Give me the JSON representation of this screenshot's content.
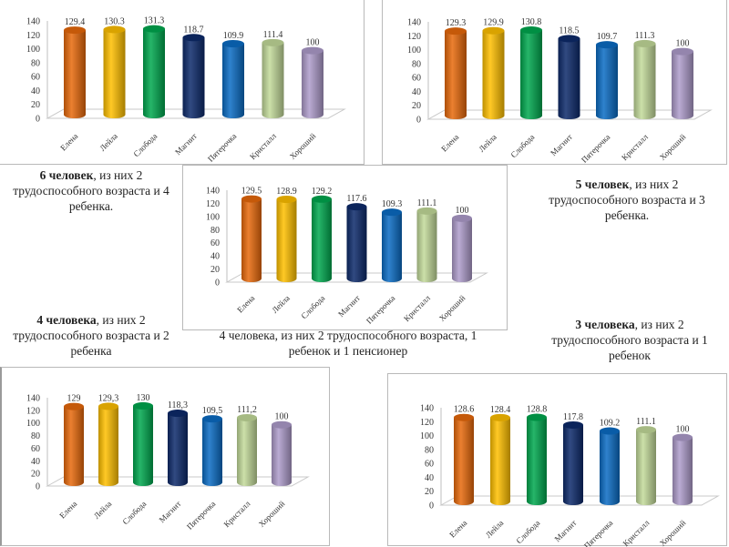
{
  "captions": {
    "cap1": {
      "bold": "6 человек",
      "rest": ", из них 2 трудоспособного возраста и 4 ребенка."
    },
    "cap2": {
      "bold": "5 человек",
      "rest": ", из них 2 трудоспособного возраста и 3 ребенка."
    },
    "cap3": {
      "bold": "4 человека",
      "rest": ", из них 2 трудоспособного возраста и 2 ребенка"
    },
    "cap4": {
      "bold": "",
      "rest": "4 человека, из них 2 трудоспособного возраста, 1 ребенок и 1 пенсионер"
    },
    "cap5": {
      "bold": "3 человека",
      "rest": ", из них 2 трудоспособного возраста и 1 ребенок"
    }
  },
  "chart_data": [
    {
      "id": "chart1",
      "type": "bar",
      "title": "",
      "caption": "6 человек, из них 2 трудоспособного возраста и 4 ребенка.",
      "categories": [
        "Елена",
        "Лейла",
        "Слобода",
        "Магнит",
        "Пятерочка",
        "Кристалл",
        "Хороший"
      ],
      "values": [
        129.4,
        130.3,
        131.3,
        118.7,
        109.9,
        111.4,
        100
      ],
      "labels": [
        "129.4",
        "130.3",
        "131.3",
        "118.7",
        "109.9",
        "111.4",
        "100"
      ],
      "xlabel": "",
      "ylabel": "",
      "ylim": [
        0,
        140
      ],
      "yticks": [
        0,
        20,
        40,
        60,
        80,
        100,
        120,
        140
      ],
      "grid": false,
      "style": "3d-cylinder"
    },
    {
      "id": "chart2",
      "type": "bar",
      "title": "",
      "caption": "5 человек, из них 2 трудоспособного возраста и 3 ребенка.",
      "categories": [
        "Елена",
        "Лейла",
        "Слобода",
        "Магнит",
        "Пятерочка",
        "Кристалл",
        "Хороший"
      ],
      "values": [
        129.3,
        129.9,
        130.8,
        118.5,
        109.7,
        111.3,
        100
      ],
      "labels": [
        "129.3",
        "129.9",
        "130.8",
        "118.5",
        "109.7",
        "111.3",
        "100"
      ],
      "xlabel": "",
      "ylabel": "",
      "ylim": [
        0,
        140
      ],
      "yticks": [
        0,
        20,
        40,
        60,
        80,
        100,
        120,
        140
      ],
      "grid": false,
      "style": "3d-cylinder"
    },
    {
      "id": "chart3",
      "type": "bar",
      "title": "",
      "caption": "4 человека, из них 2 трудоспособного возраста, 1 ребенок и 1 пенсионер",
      "categories": [
        "Елена",
        "Лейла",
        "Слобода",
        "Магнит",
        "Пятерочка",
        "Кристалл",
        "Хороший"
      ],
      "values": [
        129.5,
        128.9,
        129.2,
        117.6,
        109.3,
        111.1,
        100
      ],
      "labels": [
        "129.5",
        "128.9",
        "129.2",
        "117.6",
        "109.3",
        "111.1",
        "100"
      ],
      "xlabel": "",
      "ylabel": "",
      "ylim": [
        0,
        140
      ],
      "yticks": [
        0,
        20,
        40,
        60,
        80,
        100,
        120,
        140
      ],
      "grid": false,
      "style": "3d-cylinder"
    },
    {
      "id": "chart4",
      "type": "bar",
      "title": "",
      "caption": "4 человека, из них 2 трудоспособного возраста и 2 ребенка",
      "categories": [
        "Елена",
        "Лейла",
        "Слобода",
        "Магнит",
        "Пятерочка",
        "Кристалл",
        "Хороший"
      ],
      "values": [
        129,
        129.3,
        130,
        118.3,
        109.5,
        111.2,
        100
      ],
      "labels": [
        "129",
        "129,3",
        "130",
        "118,3",
        "109,5",
        "111,2",
        "100"
      ],
      "xlabel": "",
      "ylabel": "",
      "ylim": [
        0,
        140
      ],
      "yticks": [
        0,
        20,
        40,
        60,
        80,
        100,
        120,
        140
      ],
      "grid": false,
      "style": "3d-cylinder"
    },
    {
      "id": "chart5",
      "type": "bar",
      "title": "",
      "caption": "3 человека, из них 2 трудоспособного возраста и 1 ребенок",
      "categories": [
        "Елена",
        "Лейла",
        "Слобода",
        "Магнит",
        "Пятерочка",
        "Кристалл",
        "Хороший"
      ],
      "values": [
        128.6,
        128.4,
        128.8,
        117.8,
        109.2,
        111.1,
        100
      ],
      "labels": [
        "128.6",
        "128.4",
        "128.8",
        "117.8",
        "109.2",
        "111.1",
        "100"
      ],
      "xlabel": "",
      "ylabel": "",
      "ylim": [
        0,
        140
      ],
      "yticks": [
        0,
        20,
        40,
        60,
        80,
        100,
        120,
        140
      ],
      "grid": false,
      "style": "3d-cylinder"
    }
  ],
  "bar_colors": [
    "#E8690B",
    "#FFC000",
    "#00A84F",
    "#0D2A6B",
    "#0A6CC4",
    "#C3DB9A",
    "#AE9CCB"
  ]
}
